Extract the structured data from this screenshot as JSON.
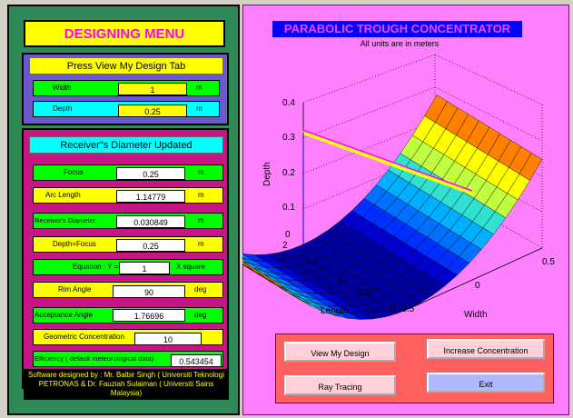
{
  "left": {
    "title": "DESIGNING MENU",
    "tab_hint": "Press View My Design Tab",
    "width": {
      "label": "Width",
      "value": "1",
      "unit": "m"
    },
    "depth": {
      "label": "Depth",
      "value": "0.25",
      "unit": "m"
    },
    "receiver_notice": "Receiver\"s Diameter Updated",
    "focus": {
      "label": "Focus",
      "value": "0.25",
      "unit": "m"
    },
    "arc": {
      "label": "Arc Length",
      "value": "1.14779",
      "unit": "m"
    },
    "receiver": {
      "label": "Receiver's Diameter",
      "value": "0.030849",
      "unit": "m"
    },
    "depthfocus": {
      "label": "Depth=Focus",
      "value": "0.25",
      "unit": "m"
    },
    "equation": {
      "label": "Equation : Y =",
      "value": "1",
      "unit": "X square"
    },
    "rim": {
      "label": "Rim Angle",
      "value": "90",
      "unit": "deg"
    },
    "acceptance": {
      "label": "Acceptance Angle",
      "value": "1.76696",
      "unit": "deg"
    },
    "geometric": {
      "label": "Geometric Concentration",
      "value": "10"
    },
    "efficiency": {
      "label": "Efficiency ( default meteorological data)",
      "value": "0.543454"
    },
    "credit": "Software designed by : Mr. Balbir Singh ( Universiti Teknologi PETRONAS & Dr. Fauziah Sulaiman ( Universiti Sains Malaysia)"
  },
  "chart": {
    "title": "PARABOLIC TROUGH CONCENTRATOR",
    "subtitle": "All units are in meters",
    "ylabel": "Depth",
    "xlabel": "Width",
    "zlabel": "Length",
    "depth_ticks": [
      "0.4",
      "0.3",
      "0.2",
      "0.1",
      "0"
    ],
    "length_ticks": [
      "2",
      "1.5",
      "1",
      "0.5",
      "0"
    ],
    "width_ticks": [
      "-0.5",
      "0",
      "0.5"
    ]
  },
  "buttons": {
    "view": "View My Design",
    "increase": "Increase Concentration",
    "ray": "Ray Tracing",
    "exit": "Exit"
  }
}
